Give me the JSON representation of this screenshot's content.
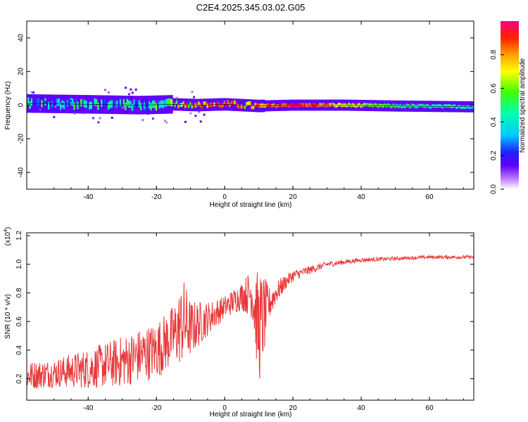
{
  "title": "C2E4.2025.345.03.02.G05",
  "colors": {
    "line": "#e8383a",
    "axis": "#000000",
    "band_core": "#e0203a"
  },
  "chart_data": [
    {
      "type": "heatmap",
      "xlabel": "Height of straight line (km)",
      "ylabel": "Frequency (Hz)",
      "xlim": [
        -58,
        73
      ],
      "ylim": [
        -50,
        50
      ],
      "xticks": [
        -40,
        -20,
        0,
        20,
        40,
        60
      ],
      "yticks": [
        -40,
        -20,
        0,
        20,
        40
      ],
      "colorbar": {
        "label": "Normalized spectral amplitude",
        "range": [
          0,
          1
        ],
        "ticks": [
          0.0,
          0.2,
          0.4,
          0.6,
          0.8
        ],
        "tick_labels": [
          "0.0",
          "0.2",
          "0.4",
          "0.6",
          "0.8"
        ]
      },
      "band_profile": [
        {
          "x": -58,
          "f": 1.0,
          "amp": 0.3
        },
        {
          "x": -40,
          "f": 0.5,
          "amp": 0.35
        },
        {
          "x": -25,
          "f": 0.0,
          "amp": 0.3
        },
        {
          "x": -15,
          "f": 0.5,
          "amp": 0.45
        },
        {
          "x": -8,
          "f": 0.0,
          "amp": 0.9
        },
        {
          "x": 0,
          "f": 0.5,
          "amp": 0.85
        },
        {
          "x": 10,
          "f": -0.5,
          "amp": 0.8
        },
        {
          "x": 20,
          "f": 0.0,
          "amp": 0.95
        },
        {
          "x": 35,
          "f": 0.0,
          "amp": 0.7
        },
        {
          "x": 50,
          "f": -0.5,
          "amp": 0.5
        },
        {
          "x": 73,
          "f": -1.0,
          "amp": 0.4
        }
      ]
    },
    {
      "type": "line",
      "xlabel": "Height of straight line (km)",
      "ylabel": "SNR (10 * v/v)",
      "ylabel_multiplier": "(x10",
      "ylabel_multiplier_exp": "4",
      "ylabel_multiplier_close": ")",
      "xlim": [
        -58,
        73
      ],
      "ylim": [
        0.05,
        1.22
      ],
      "xticks": [
        -40,
        -20,
        0,
        20,
        40,
        60
      ],
      "yticks": [
        0.2,
        0.4,
        0.6,
        0.8,
        1.0,
        1.2
      ],
      "ytick_labels": [
        "0.2",
        "0.4",
        "0.6",
        "0.8",
        "1.0",
        "1.2"
      ],
      "series": [
        {
          "name": "SNR",
          "x": [
            -58,
            -50,
            -40,
            -30,
            -20,
            -15,
            -12,
            -10,
            -5,
            0,
            5,
            8,
            10,
            11,
            13,
            15,
            18,
            20,
            25,
            30,
            40,
            50,
            60,
            73
          ],
          "y": [
            0.22,
            0.24,
            0.27,
            0.32,
            0.4,
            0.5,
            0.6,
            0.55,
            0.62,
            0.7,
            0.78,
            0.8,
            0.55,
            0.6,
            0.72,
            0.8,
            0.88,
            0.92,
            0.96,
            1.0,
            1.03,
            1.04,
            1.05,
            1.05
          ],
          "spread": [
            0.1,
            0.1,
            0.14,
            0.18,
            0.2,
            0.22,
            0.3,
            0.2,
            0.12,
            0.08,
            0.1,
            0.18,
            0.4,
            0.35,
            0.12,
            0.08,
            0.05,
            0.04,
            0.03,
            0.02,
            0.015,
            0.012,
            0.012,
            0.012
          ]
        }
      ]
    }
  ]
}
